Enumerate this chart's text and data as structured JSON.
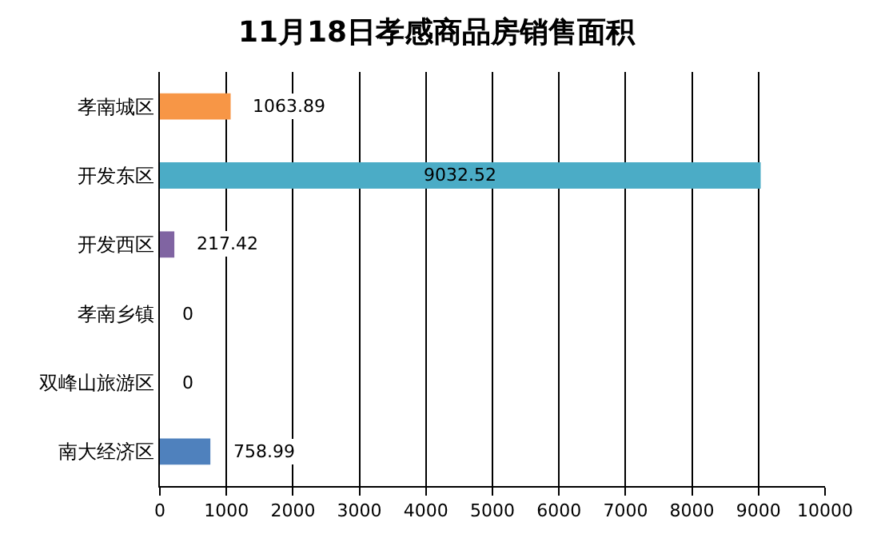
{
  "chart_data": {
    "type": "bar",
    "orientation": "horizontal",
    "title": "11月18日孝感商品房销售面积",
    "categories": [
      "孝南城区",
      "开发东区",
      "开发西区",
      "孝南乡镇",
      "双峰山旅游区",
      "南大经济区"
    ],
    "values": [
      1063.89,
      9032.52,
      217.42,
      0,
      0,
      758.99
    ],
    "colors": [
      "#f79646",
      "#4bacc6",
      "#8064a2",
      null,
      null,
      "#4f81bd"
    ],
    "data_labels": true,
    "xlim": [
      0,
      10000
    ],
    "xticks": [
      0,
      1000,
      2000,
      3000,
      4000,
      5000,
      6000,
      7000,
      8000,
      9000,
      10000
    ],
    "grid": "x"
  }
}
